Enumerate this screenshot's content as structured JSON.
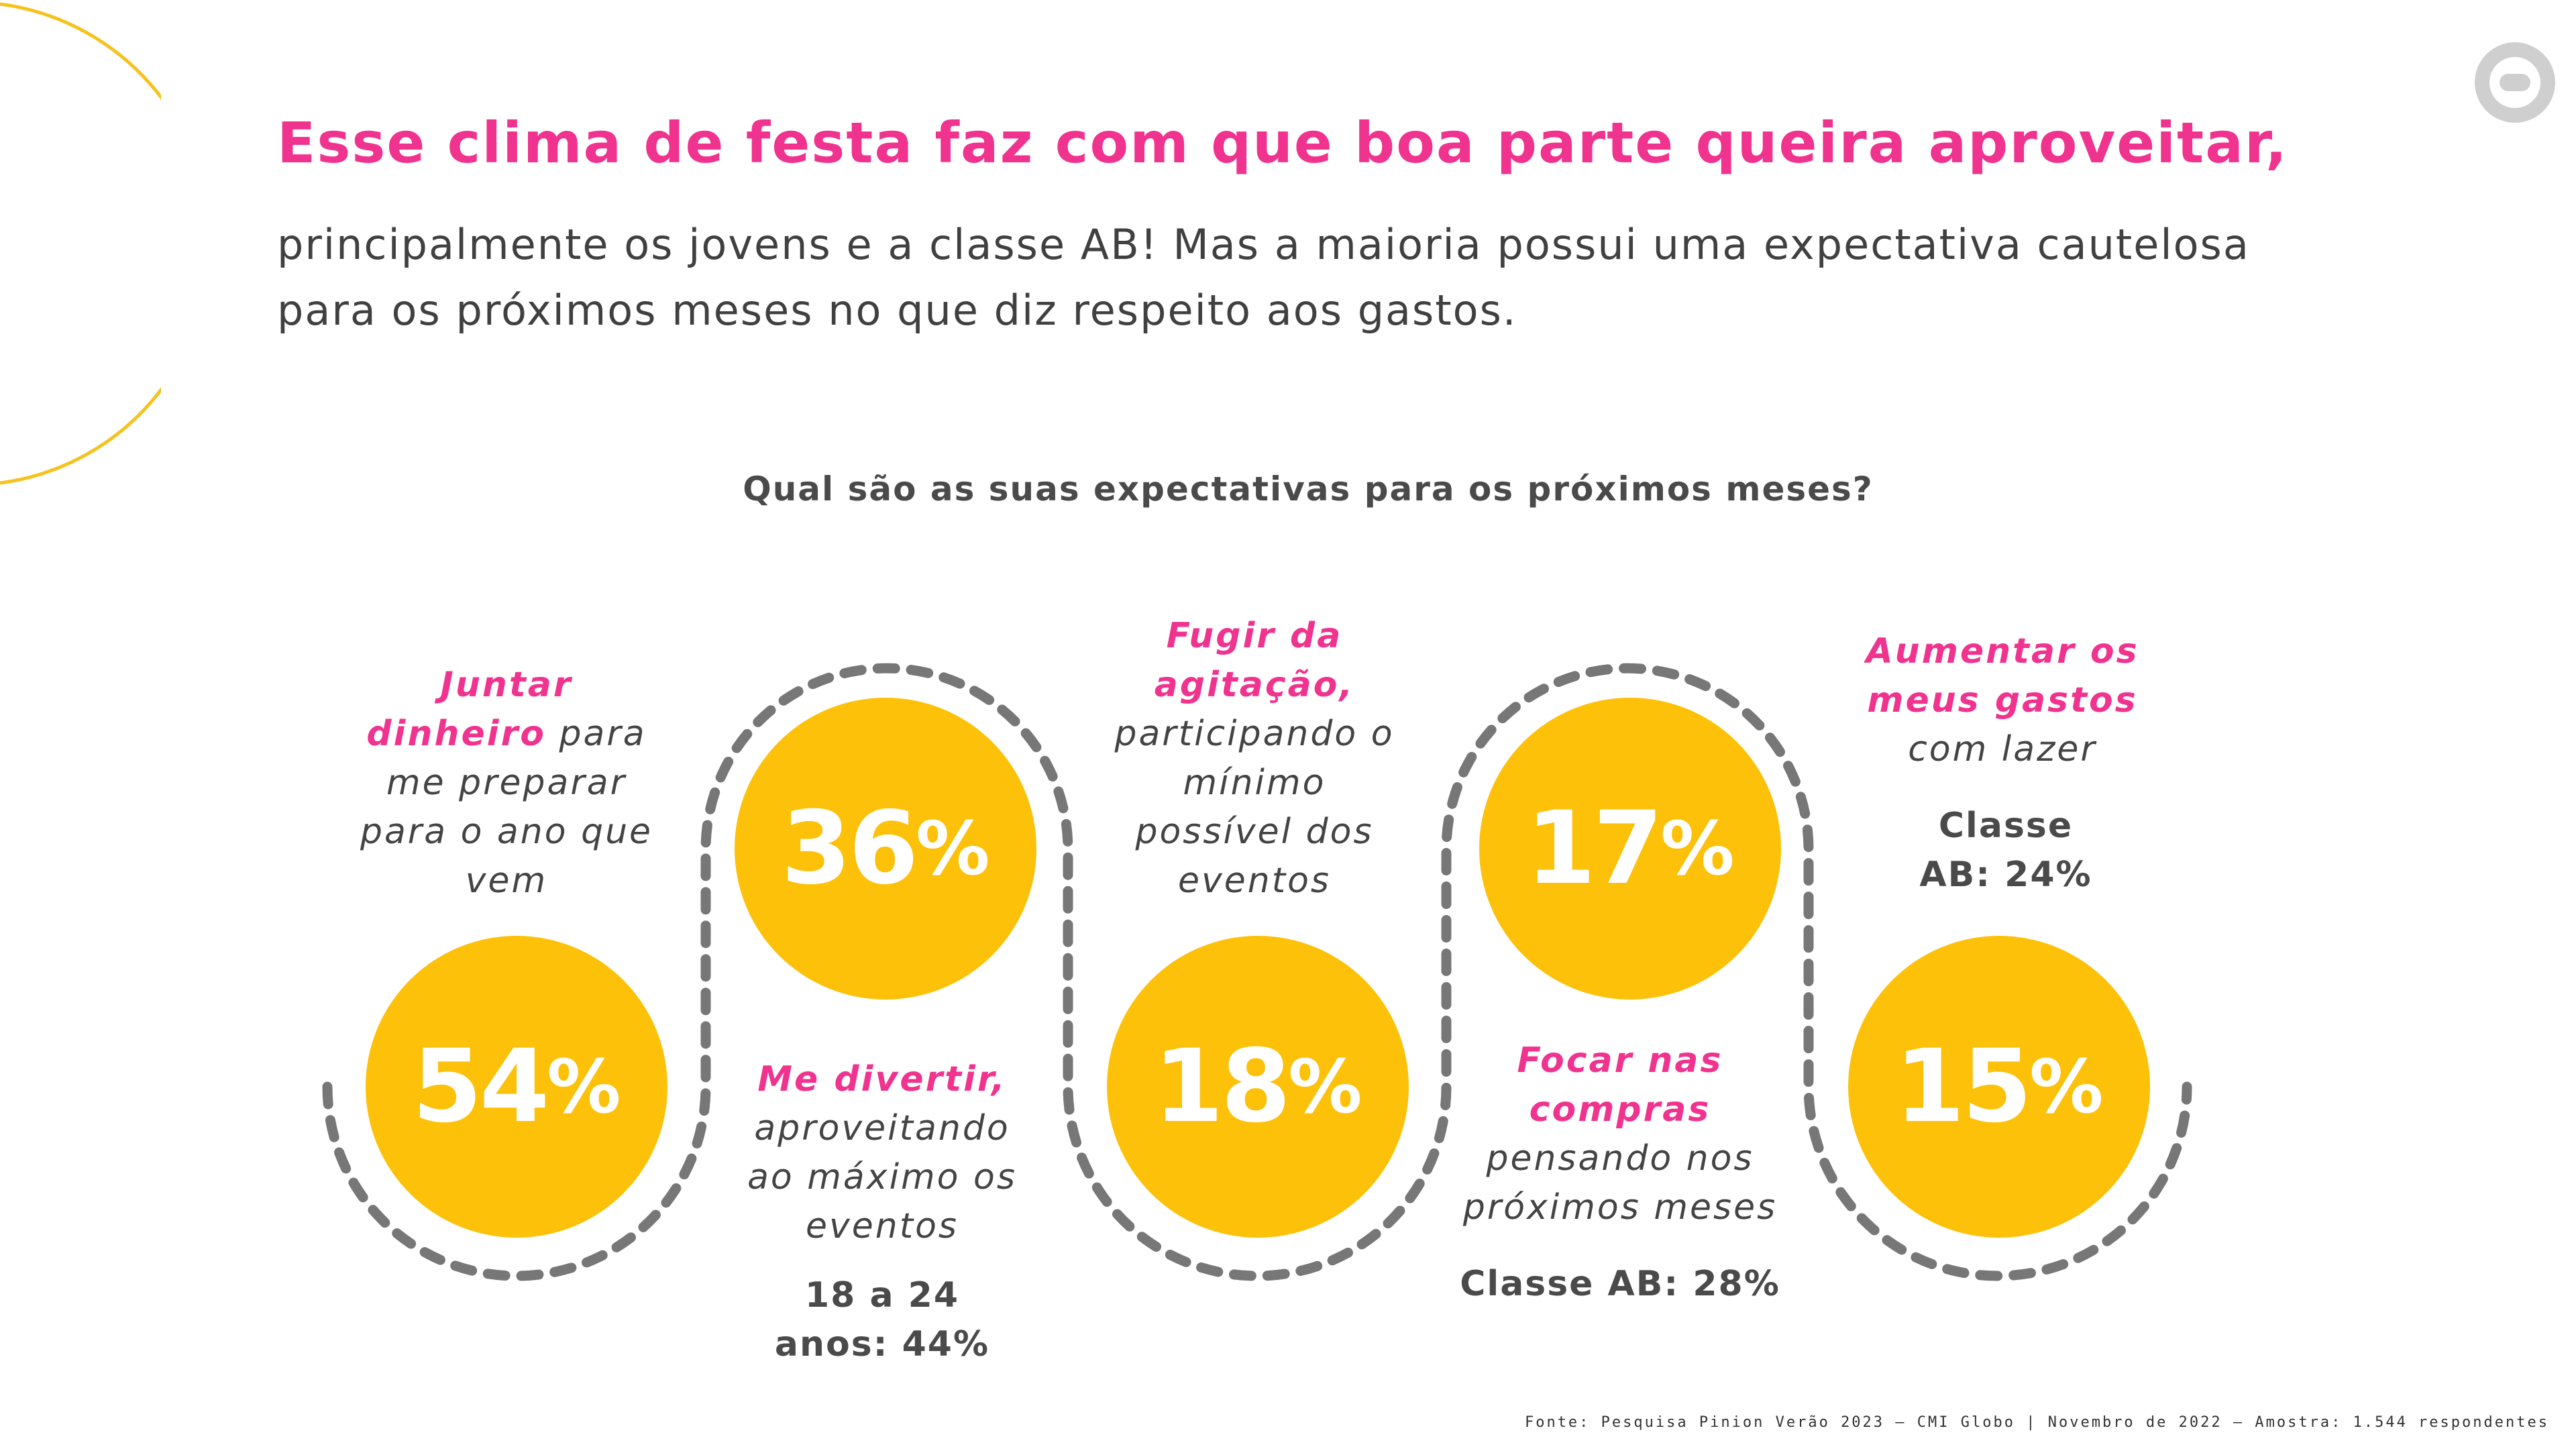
{
  "header": {
    "title": "Esse clima de festa faz com que boa parte queira aproveitar,",
    "subtitle": "principalmente os jovens e a classe AB! Mas a maioria possui uma expectativa cautelosa para os próximos meses no que diz respeito aos gastos."
  },
  "logo": {
    "icon": "globo-logo-icon"
  },
  "question": "Qual são as suas expectativas para os próximos meses?",
  "colors": {
    "accent": "#f0338f",
    "circle": "#fdc10a",
    "path": "#777777",
    "arc": "#f6c21c"
  },
  "items": [
    {
      "value": "54",
      "unit": "%",
      "label_highlight": "Juntar dinheiro",
      "label_rest": " para me preparar para o ano que vem",
      "note": ""
    },
    {
      "value": "36",
      "unit": "%",
      "label_highlight": "Me divertir,",
      "label_rest": " aproveitando ao máximo os eventos",
      "note": "18 a 24 anos: 44%"
    },
    {
      "value": "18",
      "unit": "%",
      "label_highlight": "Fugir da agitação,",
      "label_rest": " participando o mínimo possível dos eventos",
      "note": ""
    },
    {
      "value": "17",
      "unit": "%",
      "label_highlight": "Focar nas compras",
      "label_rest": " pensando nos próximos meses",
      "note": "Classe AB: 28%"
    },
    {
      "value": "15",
      "unit": "%",
      "label_highlight": "Aumentar os meus gastos",
      "label_rest": " com lazer",
      "note": "Classe AB: 24%"
    }
  ],
  "source": "Fonte: Pesquisa Pinion Verão 2023 – CMI Globo | Novembro de 2022 – Amostra: 1.544 respondentes"
}
